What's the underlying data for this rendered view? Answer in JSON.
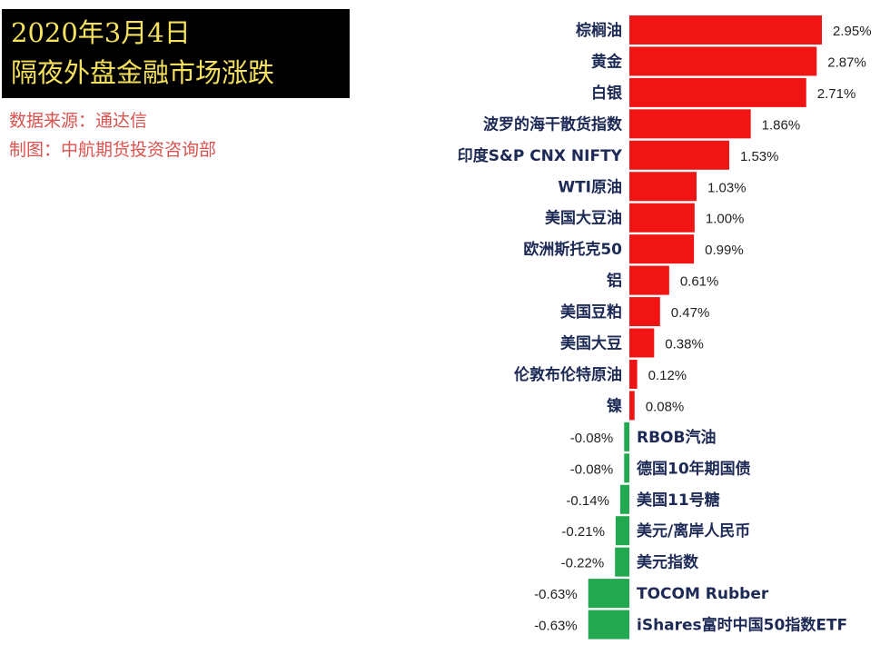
{
  "header": {
    "title_line1": "2020年3月4日",
    "title_line2": "隔夜外盘金融市场涨跌",
    "source": "数据来源：通达信",
    "producer": "制图：中航期货投资咨询部"
  },
  "colors": {
    "positive": "#f01414",
    "negative": "#22a84e",
    "title_bg": "#000000",
    "title_text": "#f5e15c",
    "source_text": "#d9534f",
    "category_text": "#1c2a55"
  },
  "chart_data": {
    "type": "bar",
    "orientation": "horizontal",
    "categories": [
      "棕榈油",
      "黄金",
      "白银",
      "波罗的海干散货指数",
      "印度S&P CNX NIFTY",
      "WTI原油",
      "美国大豆油",
      "欧洲斯托克50",
      "铝",
      "美国豆粕",
      "美国大豆",
      "伦敦布伦特原油",
      "镍",
      "RBOB汽油",
      "德国10年期国债",
      "美国11号糖",
      "美元/离岸人民币",
      "美元指数",
      "TOCOM Rubber",
      "iShares富时中国50指数ETF"
    ],
    "values": [
      2.95,
      2.87,
      2.71,
      1.86,
      1.53,
      1.03,
      1.0,
      0.99,
      0.61,
      0.47,
      0.38,
      0.12,
      0.08,
      -0.08,
      -0.08,
      -0.14,
      -0.21,
      -0.22,
      -0.63,
      -0.63
    ],
    "value_labels": [
      "2.95%",
      "2.87%",
      "2.71%",
      "1.86%",
      "1.53%",
      "1.03%",
      "1.00%",
      "0.99%",
      "0.61%",
      "0.47%",
      "0.38%",
      "0.12%",
      "0.08%",
      "-0.08%",
      "-0.08%",
      "-0.14%",
      "-0.21%",
      "-0.22%",
      "-0.63%",
      "-0.63%"
    ],
    "xlim": [
      -0.63,
      2.95
    ],
    "grid": false,
    "legend": "none"
  }
}
